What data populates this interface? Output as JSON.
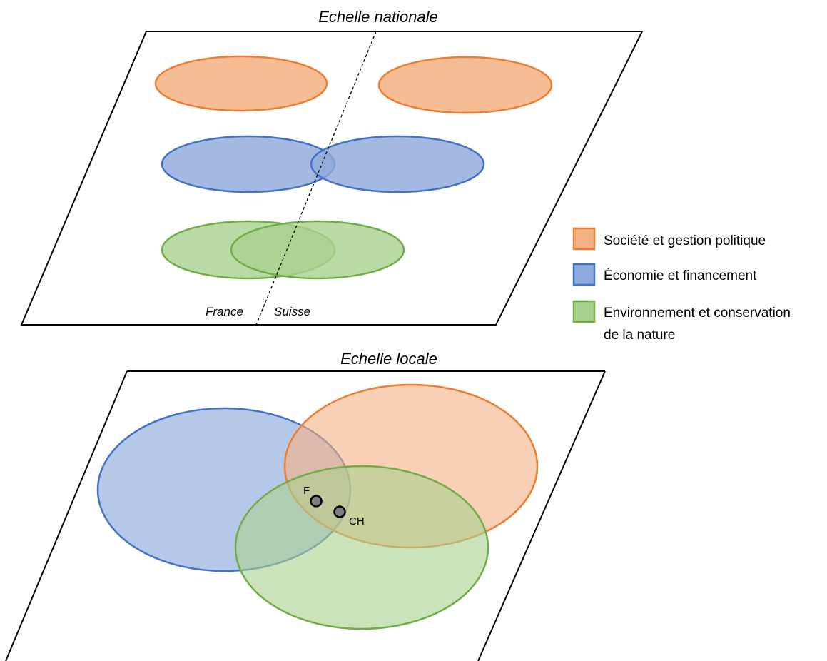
{
  "titles": {
    "national": "Echelle nationale",
    "local": "Echelle locale"
  },
  "border_labels": {
    "france": "France",
    "suisse": "Suisse"
  },
  "points": {
    "france": "F",
    "suisse": "CH"
  },
  "legend": {
    "society": "Société et gestion politique",
    "economy": "Économie et financement",
    "environment_line1": "Environnement et conservation",
    "environment_line2": "de la nature"
  },
  "colors": {
    "society_fill": "#f4b183",
    "society_stroke": "#ed7d31",
    "economy_fill": "#8faadc",
    "economy_stroke": "#4472c4",
    "environment_fill": "#a9d18e",
    "environment_stroke": "#70ad47",
    "point_fill": "#7f7f7f"
  }
}
